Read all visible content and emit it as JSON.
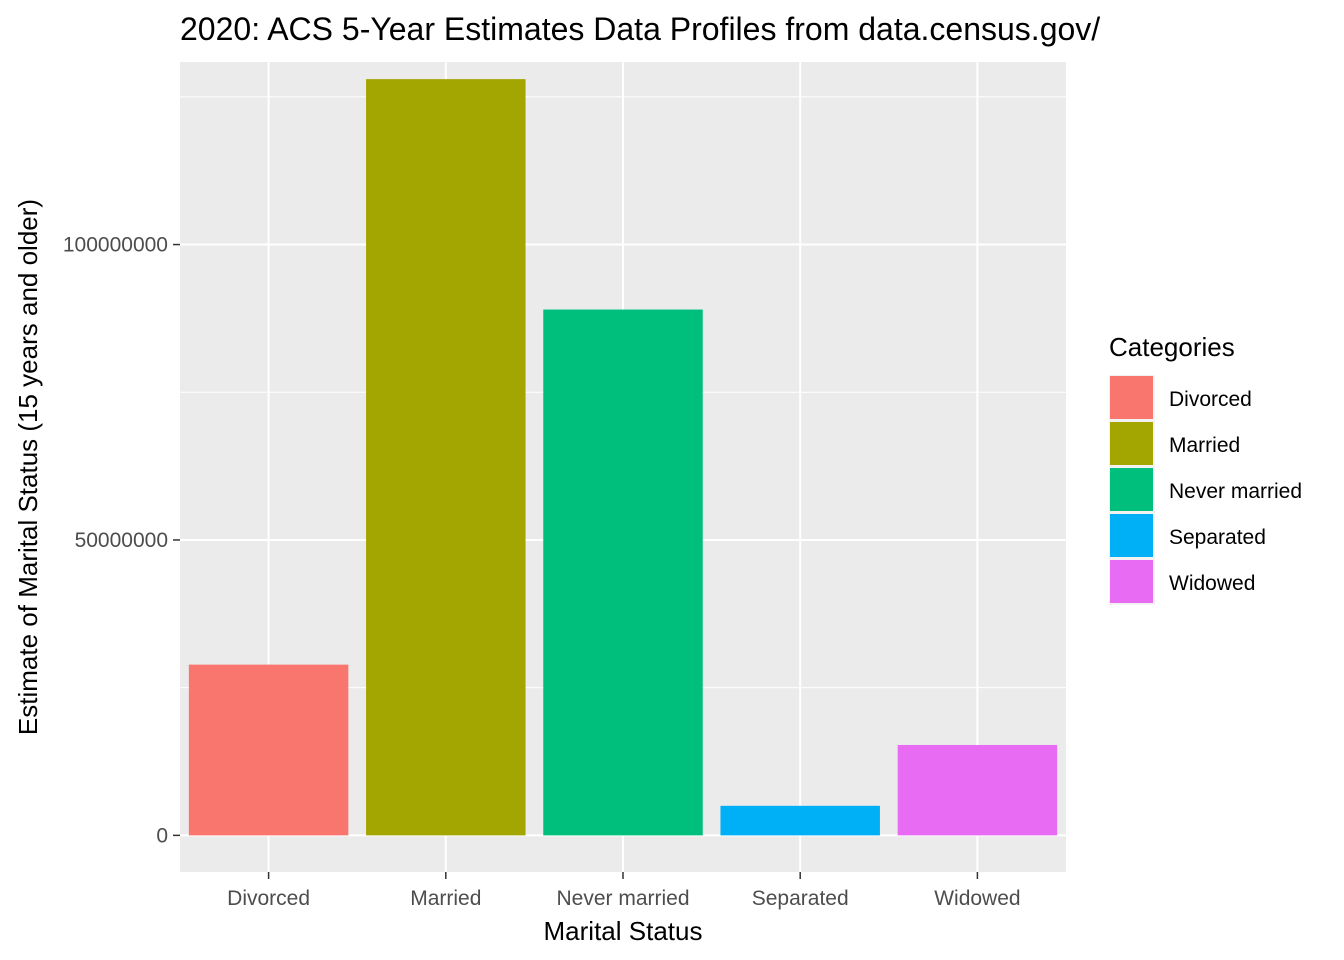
{
  "chart_data": {
    "type": "bar",
    "title": "2020: ACS 5-Year Estimates Data Profiles from data.census.gov/",
    "xlabel": "Marital Status",
    "ylabel": "Estimate of Marital Status (15 years and older)",
    "categories": [
      "Divorced",
      "Married",
      "Never married",
      "Separated",
      "Widowed"
    ],
    "values": [
      28900000,
      128000000,
      89000000,
      5000000,
      15300000
    ],
    "colors": [
      "#F8766D",
      "#A3A500",
      "#00BF7D",
      "#00B0F6",
      "#E76BF3"
    ],
    "ylim": [
      -6200000,
      130900000
    ],
    "y_ticks": [
      0,
      50000000,
      100000000
    ],
    "y_tick_labels": [
      "0",
      "50000000",
      "100000000"
    ],
    "grid": true,
    "panel_background": "#EBEBEB",
    "legend": {
      "title": "Categories",
      "placement": "right",
      "entries": [
        "Divorced",
        "Married",
        "Never married",
        "Separated",
        "Widowed"
      ]
    }
  }
}
